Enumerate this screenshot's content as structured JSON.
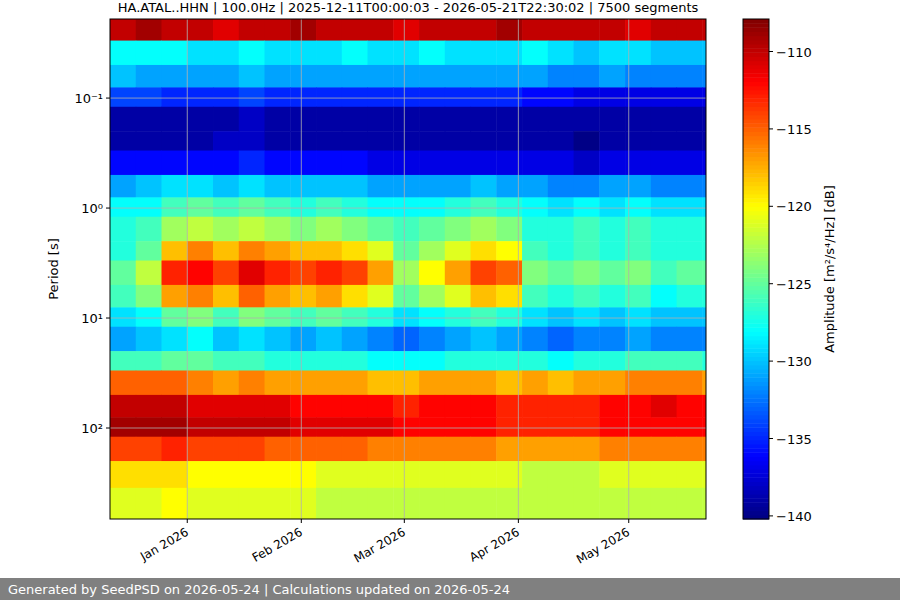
{
  "chart_data": {
    "type": "heatmap",
    "title": "HA.ATAL..HHN | 100.0Hz | 2025-12-11T00:00:03 - 2026-05-21T22:30:02 | 7500 segments",
    "y_label": "Period [s]",
    "footer": "Generated by SeedPSD on 2026-05-24 | Calculations updated on 2026-05-24",
    "log": "y",
    "grid": true,
    "xlim": [
      "2025-12-11",
      "2026-05-22"
    ],
    "xticks": [
      {
        "value": "2026-01-01",
        "label": "Jan 2026"
      },
      {
        "value": "2026-02-01",
        "label": "Feb 2026"
      },
      {
        "value": "2026-03-01",
        "label": "Mar 2026"
      },
      {
        "value": "2026-04-01",
        "label": "Apr 2026"
      },
      {
        "value": "2026-05-01",
        "label": "May 2026"
      }
    ],
    "ylim": [
      672,
      0.0191
    ],
    "yticks": [
      {
        "value": 0.1,
        "label": "10⁻¹"
      },
      {
        "value": 1,
        "label": "10⁰"
      },
      {
        "value": 10,
        "label": "10¹"
      },
      {
        "value": 100,
        "label": "10²"
      }
    ],
    "x_edges": [
      "2025-12-11",
      "2025-12-18",
      "2025-12-25",
      "2026-01-01",
      "2026-01-08",
      "2026-01-15",
      "2026-01-22",
      "2026-01-29",
      "2026-02-05",
      "2026-02-12",
      "2026-02-19",
      "2026-02-26",
      "2026-03-05",
      "2026-03-12",
      "2026-03-19",
      "2026-03-26",
      "2026-04-02",
      "2026-04-09",
      "2026-04-16",
      "2026-04-23",
      "2026-04-30",
      "2026-05-07",
      "2026-05-14",
      "2026-05-21",
      "2026-05-22"
    ],
    "y_edges": [
      0.0191,
      0.03,
      0.05,
      0.08,
      0.12,
      0.2,
      0.3,
      0.5,
      0.8,
      1.2,
      2,
      3,
      5,
      8,
      12,
      20,
      30,
      50,
      80,
      120,
      200,
      350,
      672
    ],
    "cells": [
      [
        -110,
        -109,
        -110,
        -110,
        -111,
        -110,
        -110,
        -109,
        -110,
        -110,
        -110,
        -111,
        -110,
        -110,
        -110,
        -109,
        -110,
        -110,
        -110,
        -110,
        -111,
        -110,
        -110,
        -110
      ],
      [
        -128,
        -128,
        -128,
        -129,
        -129,
        -128,
        -129,
        -129,
        -129,
        -128,
        -129,
        -129,
        -128,
        -129,
        -129,
        -129,
        -128,
        -129,
        -130,
        -129,
        -129,
        -130,
        -130,
        -130
      ],
      [
        -130,
        -131,
        -131,
        -131,
        -131,
        -130,
        -131,
        -131,
        -131,
        -131,
        -131,
        -131,
        -131,
        -131,
        -131,
        -131,
        -131,
        -132,
        -132,
        -131,
        -132,
        -132,
        -132,
        -132
      ],
      [
        -134,
        -134,
        -135,
        -135,
        -135,
        -134,
        -135,
        -135,
        -135,
        -135,
        -135,
        -135,
        -135,
        -135,
        -135,
        -135,
        -136,
        -136,
        -137,
        -137,
        -137,
        -137,
        -137,
        -137
      ],
      [
        -139,
        -139,
        -139,
        -139,
        -139,
        -138,
        -139,
        -139,
        -139,
        -139,
        -139,
        -139,
        -139,
        -139,
        -139,
        -139,
        -139,
        -139,
        -139,
        -139,
        -139,
        -139,
        -139,
        -139
      ],
      [
        -139,
        -139,
        -139,
        -139,
        -138,
        -138,
        -139,
        -139,
        -139,
        -139,
        -139,
        -139,
        -139,
        -139,
        -139,
        -139,
        -139,
        -139,
        -140,
        -139,
        -139,
        -139,
        -139,
        -139
      ],
      [
        -136,
        -136,
        -136,
        -136,
        -136,
        -135,
        -136,
        -136,
        -136,
        -136,
        -137,
        -137,
        -137,
        -137,
        -137,
        -137,
        -137,
        -137,
        -138,
        -137,
        -137,
        -137,
        -137,
        -137
      ],
      [
        -131,
        -130,
        -129,
        -129,
        -130,
        -129,
        -130,
        -130,
        -130,
        -130,
        -131,
        -131,
        -131,
        -131,
        -130,
        -131,
        -131,
        -132,
        -132,
        -131,
        -131,
        -132,
        -132,
        -132
      ],
      [
        -128,
        -128,
        -126,
        -125,
        -126,
        -125,
        -126,
        -127,
        -126,
        -127,
        -128,
        -128,
        -128,
        -127,
        -126,
        -127,
        -128,
        -129,
        -128,
        -129,
        -128,
        -129,
        -129,
        -129
      ],
      [
        -127,
        -126,
        -123,
        -122,
        -123,
        -122,
        -123,
        -124,
        -123,
        -124,
        -125,
        -126,
        -125,
        -124,
        -123,
        -124,
        -127,
        -127,
        -126,
        -127,
        -126,
        -127,
        -127,
        -127
      ],
      [
        -127,
        -125,
        -118,
        -116,
        -118,
        -116,
        -117,
        -118,
        -118,
        -119,
        -121,
        -125,
        -123,
        -121,
        -119,
        -120,
        -126,
        -127,
        -126,
        -127,
        -126,
        -127,
        -127,
        -127
      ],
      [
        -125,
        -122,
        -113,
        -112,
        -114,
        -111,
        -113,
        -114,
        -113,
        -114,
        -117,
        -123,
        -120,
        -117,
        -114,
        -115,
        -124,
        -125,
        -124,
        -125,
        -124,
        -126,
        -125,
        -125
      ],
      [
        -126,
        -124,
        -117,
        -116,
        -118,
        -115,
        -117,
        -118,
        -117,
        -119,
        -121,
        -125,
        -123,
        -121,
        -118,
        -119,
        -126,
        -127,
        -126,
        -127,
        -126,
        -128,
        -127,
        -127
      ],
      [
        -129,
        -128,
        -125,
        -124,
        -126,
        -124,
        -125,
        -126,
        -125,
        -126,
        -127,
        -129,
        -128,
        -127,
        -126,
        -127,
        -129,
        -130,
        -129,
        -130,
        -129,
        -130,
        -130,
        -130
      ],
      [
        -131,
        -130,
        -129,
        -128,
        -130,
        -129,
        -130,
        -131,
        -130,
        -131,
        -132,
        -133,
        -132,
        -131,
        -130,
        -131,
        -132,
        -133,
        -132,
        -132,
        -131,
        -132,
        -132,
        -132
      ],
      [
        -126,
        -126,
        -125,
        -125,
        -126,
        -126,
        -127,
        -127,
        -127,
        -127,
        -128,
        -128,
        -128,
        -127,
        -127,
        -127,
        -127,
        -128,
        -127,
        -127,
        -126,
        -126,
        -126,
        -127
      ],
      [
        -115,
        -115,
        -115,
        -116,
        -117,
        -116,
        -117,
        -117,
        -117,
        -117,
        -118,
        -118,
        -117,
        -117,
        -117,
        -118,
        -117,
        -118,
        -117,
        -117,
        -116,
        -116,
        -116,
        -117
      ],
      [
        -110,
        -110,
        -110,
        -111,
        -111,
        -111,
        -111,
        -112,
        -112,
        -112,
        -112,
        -113,
        -112,
        -112,
        -112,
        -113,
        -113,
        -113,
        -113,
        -112,
        -112,
        -111,
        -112,
        -112
      ],
      [
        -109,
        -109,
        -109,
        -110,
        -110,
        -110,
        -110,
        -111,
        -111,
        -111,
        -111,
        -112,
        -112,
        -112,
        -112,
        -113,
        -113,
        -113,
        -113,
        -112,
        -112,
        -112,
        -112,
        -112
      ],
      [
        -114,
        -114,
        -113,
        -114,
        -114,
        -114,
        -115,
        -115,
        -115,
        -115,
        -116,
        -116,
        -116,
        -116,
        -116,
        -117,
        -117,
        -117,
        -117,
        -116,
        -116,
        -116,
        -116,
        -116
      ],
      [
        -119,
        -119,
        -119,
        -120,
        -120,
        -120,
        -120,
        -120,
        -121,
        -121,
        -121,
        -121,
        -121,
        -121,
        -121,
        -121,
        -122,
        -122,
        -122,
        -121,
        -121,
        -121,
        -121,
        -121
      ],
      [
        -121,
        -121,
        -120,
        -121,
        -121,
        -121,
        -121,
        -121,
        -122,
        -122,
        -122,
        -122,
        -122,
        -122,
        -122,
        -122,
        -122,
        -122,
        -122,
        -122,
        -122,
        -122,
        -122,
        -122
      ]
    ],
    "colorbar": {
      "label": "Amplitude [m²/s⁴/Hz] [dB]",
      "lim": [
        -140.2,
        -107.9
      ],
      "ticks": [
        {
          "value": -140,
          "label": "−140"
        },
        {
          "value": -135,
          "label": "−135"
        },
        {
          "value": -130,
          "label": "−130"
        },
        {
          "value": -125,
          "label": "−125"
        },
        {
          "value": -120,
          "label": "−120"
        },
        {
          "value": -115,
          "label": "−115"
        },
        {
          "value": -110,
          "label": "−110"
        }
      ]
    }
  }
}
